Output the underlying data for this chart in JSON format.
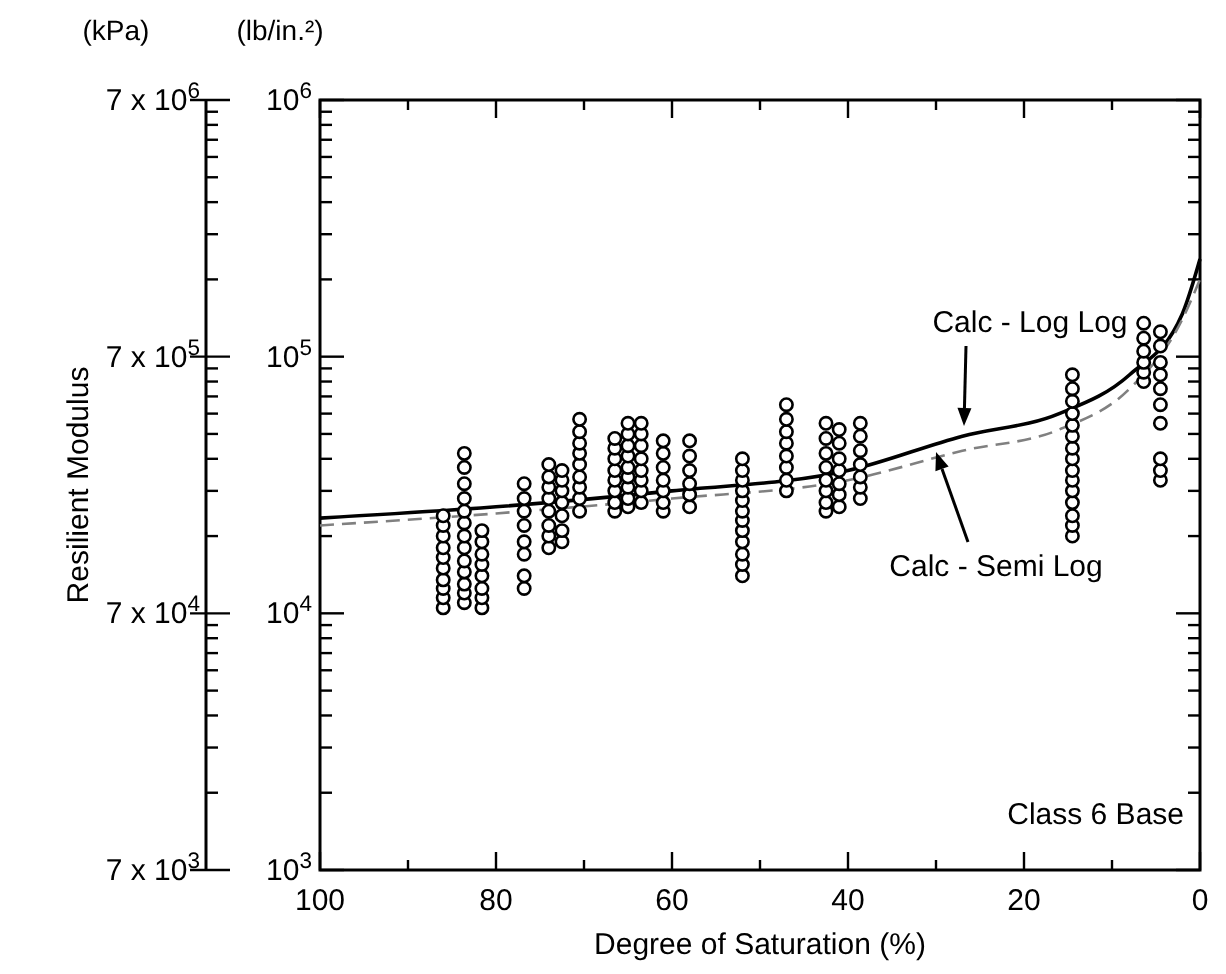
{
  "chart_data": {
    "type": "scatter",
    "xlabel": "Degree of Saturation (%)",
    "annotations": [
      "Resilient Modulus",
      "(lb/in.²)",
      "Calc - Log Log",
      "Calc - Semi Log",
      "Class 6 Base",
      "(kPa)",
      "7 x 10$^{3}$",
      "7 x 10$^{4}$",
      "7 x 10$^{5}$",
      "7 x 10$^{6}$"
    ],
    "xlim": [
      100,
      0
    ],
    "xticks": [
      100,
      {
        "value": 90,
        "label": null
      },
      80,
      {
        "value": 70,
        "label": null
      },
      60,
      {
        "value": 50,
        "label": null
      },
      40,
      {
        "value": 30,
        "label": null
      },
      20,
      {
        "value": 10,
        "label": null
      },
      0
    ],
    "ylim": [
      1000,
      1000000
    ],
    "log": "y",
    "grid": false,
    "yticks": [
      {
        "value": 1000,
        "label": "10$^{3}$"
      },
      {
        "value": 2000,
        "label": null
      },
      {
        "value": 3000,
        "label": null
      },
      {
        "value": 4000,
        "label": null
      },
      {
        "value": 5000,
        "label": null
      },
      {
        "value": 6000,
        "label": null
      },
      {
        "value": 7000,
        "label": null
      },
      {
        "value": 8000,
        "label": null
      },
      {
        "value": 9000,
        "label": null
      },
      {
        "value": 10000,
        "label": "10$^{4}$"
      },
      {
        "value": 20000,
        "label": null
      },
      {
        "value": 30000,
        "label": null
      },
      {
        "value": 40000,
        "label": null
      },
      {
        "value": 50000,
        "label": null
      },
      {
        "value": 60000,
        "label": null
      },
      {
        "value": 70000,
        "label": null
      },
      {
        "value": 80000,
        "label": null
      },
      {
        "value": 90000,
        "label": null
      },
      {
        "value": 100000,
        "label": "10$^{5}$"
      },
      {
        "value": 200000,
        "label": null
      },
      {
        "value": 300000,
        "label": null
      },
      {
        "value": 400000,
        "label": null
      },
      {
        "value": 500000,
        "label": null
      },
      {
        "value": 600000,
        "label": null
      },
      {
        "value": 700000,
        "label": null
      },
      {
        "value": 800000,
        "label": null
      },
      {
        "value": 900000,
        "label": null
      },
      {
        "value": 1000000,
        "label": "10$^{6}$"
      }
    ],
    "series": [
      {
        "type": "scatter",
        "color": "#000000",
        "marker": "circle",
        "x": [
          86,
          86,
          86,
          86,
          86,
          86,
          86,
          86,
          86,
          86,
          83.6,
          83.6,
          83.6,
          83.6,
          83.6,
          83.6,
          83.6,
          83.6,
          83.6,
          83.6,
          83.6,
          83.6,
          83.6,
          81.6,
          81.6,
          81.6,
          81.6,
          81.6,
          81.6,
          81.6,
          81.6,
          76.8,
          76.8,
          76.8,
          76.8,
          76.8,
          76.8,
          76.8,
          76.8,
          74,
          74,
          74,
          74,
          74,
          74,
          74,
          74,
          72.5,
          72.5,
          72.5,
          72.5,
          72.5,
          72.5,
          72.5,
          70.5,
          70.5,
          70.5,
          70.5,
          70.5,
          70.5,
          70.5,
          70.5,
          70.5,
          66.5,
          66.5,
          66.5,
          66.5,
          66.5,
          66.5,
          66.5,
          66.5,
          65,
          65,
          65,
          65,
          65,
          65,
          65,
          65,
          65,
          63.5,
          63.5,
          63.5,
          63.5,
          63.5,
          63.5,
          63.5,
          63.5,
          61,
          61,
          61,
          61,
          61,
          61,
          61,
          58,
          58,
          58,
          58,
          58,
          58,
          52,
          52,
          52,
          52,
          52,
          52,
          52,
          52,
          52,
          52,
          52,
          52,
          47,
          47,
          47,
          47,
          47,
          47,
          47,
          47,
          42.5,
          42.5,
          42.5,
          42.5,
          42.5,
          42.5,
          42.5,
          42.5,
          41,
          41,
          41,
          41,
          41,
          41,
          41,
          38.6,
          38.6,
          38.6,
          38.6,
          38.6,
          38.6,
          38.6,
          14.5,
          14.5,
          14.5,
          14.5,
          14.5,
          14.5,
          14.5,
          14.5,
          14.5,
          14.5,
          14.5,
          14.5,
          14.5,
          14.5,
          14.5,
          6.4,
          6.4,
          6.4,
          6.4,
          6.4,
          6.4,
          4.5,
          4.5,
          4.5,
          4.5,
          4.5,
          4.5,
          4.5,
          4.5,
          4.5,
          4.5
        ],
        "values": [
          10500,
          11500,
          12500,
          13500,
          15000,
          16500,
          18000,
          20000,
          22000,
          24000,
          11000,
          12000,
          13000,
          14500,
          16000,
          18000,
          20000,
          22500,
          25000,
          28000,
          32000,
          37000,
          42000,
          10500,
          11500,
          12500,
          14000,
          15500,
          17000,
          19000,
          21000,
          12500,
          14000,
          17000,
          19000,
          22000,
          25000,
          28000,
          32000,
          18000,
          20000,
          22000,
          25000,
          28000,
          31000,
          34000,
          38000,
          19000,
          21000,
          24000,
          27000,
          30000,
          33000,
          36000,
          25000,
          28000,
          31000,
          34000,
          38000,
          42000,
          46000,
          51000,
          57000,
          25000,
          27000,
          30000,
          33000,
          36000,
          40000,
          44000,
          48000,
          26000,
          28000,
          31000,
          34000,
          37000,
          41000,
          45000,
          50000,
          55000,
          27000,
          30000,
          33000,
          36000,
          40000,
          45000,
          50000,
          55000,
          25000,
          27000,
          30000,
          33000,
          37000,
          42000,
          47000,
          26000,
          29000,
          32000,
          36000,
          41000,
          47000,
          14000,
          15500,
          17000,
          19000,
          21000,
          23000,
          25000,
          27500,
          30000,
          33000,
          36000,
          40000,
          30000,
          33000,
          37000,
          41000,
          46000,
          51000,
          57000,
          65000,
          25000,
          27000,
          30000,
          33000,
          37000,
          42000,
          48000,
          55000,
          26000,
          29000,
          32000,
          36000,
          40000,
          46000,
          52000,
          28000,
          31000,
          34000,
          38000,
          43000,
          49000,
          55000,
          20000,
          22000,
          24000,
          27000,
          30000,
          33000,
          36000,
          40000,
          44000,
          49000,
          54000,
          60000,
          67000,
          75000,
          85000,
          80000,
          87000,
          95000,
          105000,
          118000,
          135000,
          33000,
          36000,
          40000,
          55000,
          65000,
          75000,
          85000,
          95000,
          110000,
          125000
        ]
      },
      {
        "type": "line",
        "color": "#000000",
        "line_style": "solid",
        "marker": "none",
        "x": [
          100,
          80,
          60,
          40,
          27,
          16,
          8,
          2,
          0
        ],
        "values": [
          23500,
          26000,
          30000,
          36000,
          49000,
          60000,
          85000,
          147000,
          240000
        ]
      },
      {
        "type": "line",
        "color": "#808080",
        "line_style": "dashed",
        "marker": "none",
        "x": [
          100,
          80,
          60,
          40,
          27,
          16,
          8,
          2,
          0
        ],
        "values": [
          22000,
          24500,
          28000,
          33000,
          43000,
          52000,
          75000,
          140000,
          200000
        ]
      }
    ]
  }
}
